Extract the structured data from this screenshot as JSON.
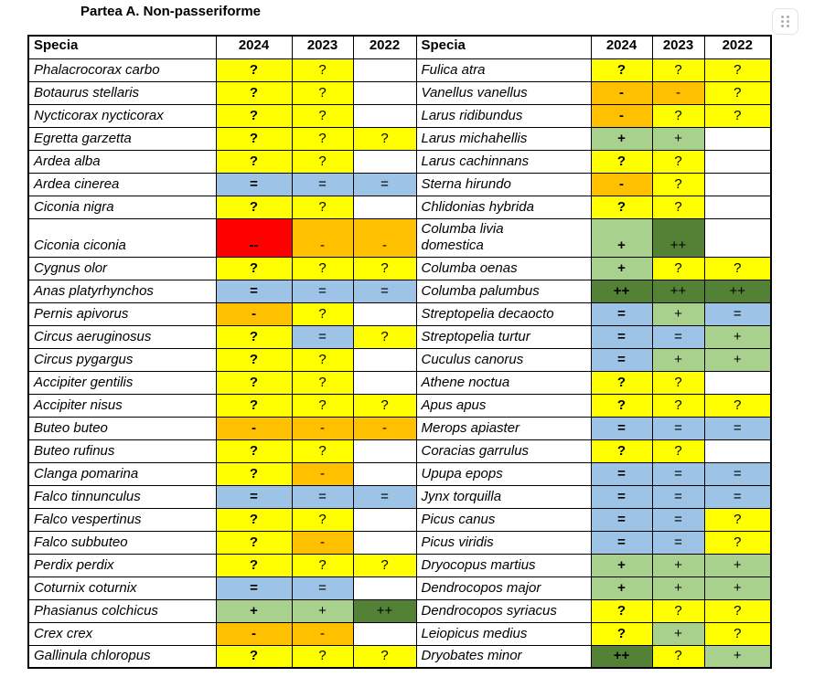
{
  "title": "Partea A. Non-passeriforme",
  "corner_widget": {
    "icon": "six-dot-grid-icon"
  },
  "table": {
    "header": {
      "specia": "Specia",
      "y2024": "2024",
      "y2023": "2023",
      "y2022": "2022"
    },
    "colors": {
      "Y": "#FFFF00",
      "O": "#FFC000",
      "B": "#9DC3E6",
      "G": "#A9D18E",
      "D": "#538135",
      "R": "#FF0000"
    },
    "rows": [
      {
        "tall": false,
        "left": {
          "species": "Phalacrocorax carbo",
          "cells": [
            [
              "?",
              "Y"
            ],
            [
              "?",
              "Y"
            ],
            null
          ]
        },
        "right": {
          "species": "Fulica atra",
          "cells": [
            [
              "?",
              "Y"
            ],
            [
              "?",
              "Y"
            ],
            [
              "?",
              "Y"
            ]
          ]
        }
      },
      {
        "tall": false,
        "left": {
          "species": "Botaurus stellaris",
          "cells": [
            [
              "?",
              "Y"
            ],
            [
              "?",
              "Y"
            ],
            null
          ]
        },
        "right": {
          "species": "Vanellus vanellus",
          "cells": [
            [
              "-",
              "O"
            ],
            [
              "-",
              "O"
            ],
            [
              "?",
              "Y"
            ]
          ]
        }
      },
      {
        "tall": false,
        "left": {
          "species": "Nycticorax nycticorax",
          "cells": [
            [
              "?",
              "Y"
            ],
            [
              "?",
              "Y"
            ],
            null
          ]
        },
        "right": {
          "species": "Larus ridibundus",
          "cells": [
            [
              "-",
              "O"
            ],
            [
              "?",
              "Y"
            ],
            [
              "?",
              "Y"
            ]
          ]
        }
      },
      {
        "tall": false,
        "left": {
          "species": "Egretta garzetta",
          "cells": [
            [
              "?",
              "Y"
            ],
            [
              "?",
              "Y"
            ],
            [
              "?",
              "Y"
            ]
          ]
        },
        "right": {
          "species": "Larus michahellis",
          "cells": [
            [
              "+",
              "G"
            ],
            [
              "+",
              "G"
            ],
            null
          ]
        }
      },
      {
        "tall": false,
        "left": {
          "species": "Ardea alba",
          "cells": [
            [
              "?",
              "Y"
            ],
            [
              "?",
              "Y"
            ],
            null
          ]
        },
        "right": {
          "species": "Larus cachinnans",
          "cells": [
            [
              "?",
              "Y"
            ],
            [
              "?",
              "Y"
            ],
            null
          ]
        }
      },
      {
        "tall": false,
        "left": {
          "species": "Ardea cinerea",
          "cells": [
            [
              "=",
              "B"
            ],
            [
              "=",
              "B"
            ],
            [
              "=",
              "B"
            ]
          ]
        },
        "right": {
          "species": "Sterna hirundo",
          "cells": [
            [
              "-",
              "O"
            ],
            [
              "?",
              "Y"
            ],
            null
          ]
        }
      },
      {
        "tall": false,
        "left": {
          "species": "Ciconia nigra",
          "cells": [
            [
              "?",
              "Y"
            ],
            [
              "?",
              "Y"
            ],
            null
          ]
        },
        "right": {
          "species": "Chlidonias hybrida",
          "cells": [
            [
              "?",
              "Y"
            ],
            [
              "?",
              "Y"
            ],
            null
          ]
        }
      },
      {
        "tall": true,
        "left": {
          "species": "Ciconia ciconia",
          "cells": [
            [
              "--",
              "R"
            ],
            [
              "-",
              "O"
            ],
            [
              "-",
              "O"
            ]
          ]
        },
        "right": {
          "species": "Columba livia\ndomestica",
          "cells": [
            [
              "+",
              "G"
            ],
            [
              "++",
              "D"
            ],
            null
          ]
        }
      },
      {
        "tall": false,
        "left": {
          "species": "Cygnus olor",
          "cells": [
            [
              "?",
              "Y"
            ],
            [
              "?",
              "Y"
            ],
            [
              "?",
              "Y"
            ]
          ]
        },
        "right": {
          "species": "Columba oenas",
          "cells": [
            [
              "+",
              "G"
            ],
            [
              "?",
              "Y"
            ],
            [
              "?",
              "Y"
            ]
          ]
        }
      },
      {
        "tall": false,
        "left": {
          "species": "Anas platyrhynchos",
          "cells": [
            [
              "=",
              "B"
            ],
            [
              "=",
              "B"
            ],
            [
              "=",
              "B"
            ]
          ]
        },
        "right": {
          "species": "Columba palumbus",
          "cells": [
            [
              "++",
              "D"
            ],
            [
              "++",
              "D"
            ],
            [
              "++",
              "D"
            ]
          ]
        }
      },
      {
        "tall": false,
        "left": {
          "species": "Pernis apivorus",
          "cells": [
            [
              "-",
              "O"
            ],
            [
              "?",
              "Y"
            ],
            null
          ]
        },
        "right": {
          "species": "Streptopelia decaocto",
          "cells": [
            [
              "=",
              "B"
            ],
            [
              "+",
              "G"
            ],
            [
              "=",
              "B"
            ]
          ]
        }
      },
      {
        "tall": false,
        "left": {
          "species": "Circus aeruginosus",
          "cells": [
            [
              "?",
              "Y"
            ],
            [
              "=",
              "B"
            ],
            [
              "?",
              "Y"
            ]
          ]
        },
        "right": {
          "species": "Streptopelia turtur",
          "cells": [
            [
              "=",
              "B"
            ],
            [
              "=",
              "B"
            ],
            [
              "+",
              "G"
            ]
          ]
        }
      },
      {
        "tall": false,
        "left": {
          "species": "Circus pygargus",
          "cells": [
            [
              "?",
              "Y"
            ],
            [
              "?",
              "Y"
            ],
            null
          ]
        },
        "right": {
          "species": "Cuculus canorus",
          "cells": [
            [
              "=",
              "B"
            ],
            [
              "+",
              "G"
            ],
            [
              "+",
              "G"
            ]
          ]
        }
      },
      {
        "tall": false,
        "left": {
          "species": "Accipiter gentilis",
          "cells": [
            [
              "?",
              "Y"
            ],
            [
              "?",
              "Y"
            ],
            null
          ]
        },
        "right": {
          "species": "Athene noctua",
          "cells": [
            [
              "?",
              "Y"
            ],
            [
              "?",
              "Y"
            ],
            null
          ]
        }
      },
      {
        "tall": false,
        "left": {
          "species": "Accipiter nisus",
          "cells": [
            [
              "?",
              "Y"
            ],
            [
              "?",
              "Y"
            ],
            [
              "?",
              "Y"
            ]
          ]
        },
        "right": {
          "species": "Apus apus",
          "cells": [
            [
              "?",
              "Y"
            ],
            [
              "?",
              "Y"
            ],
            [
              "?",
              "Y"
            ]
          ]
        }
      },
      {
        "tall": false,
        "left": {
          "species": "Buteo buteo",
          "cells": [
            [
              "-",
              "O"
            ],
            [
              "-",
              "O"
            ],
            [
              "-",
              "O"
            ]
          ]
        },
        "right": {
          "species": "Merops apiaster",
          "cells": [
            [
              "=",
              "B"
            ],
            [
              "=",
              "B"
            ],
            [
              "=",
              "B"
            ]
          ]
        }
      },
      {
        "tall": false,
        "left": {
          "species": "Buteo rufinus",
          "cells": [
            [
              "?",
              "Y"
            ],
            [
              "?",
              "Y"
            ],
            null
          ]
        },
        "right": {
          "species": "Coracias garrulus",
          "cells": [
            [
              "?",
              "Y"
            ],
            [
              "?",
              "Y"
            ],
            null
          ]
        }
      },
      {
        "tall": false,
        "left": {
          "species": "Clanga pomarina",
          "cells": [
            [
              "?",
              "Y"
            ],
            [
              "-",
              "O"
            ],
            null
          ]
        },
        "right": {
          "species": "Upupa epops",
          "cells": [
            [
              "=",
              "B"
            ],
            [
              "=",
              "B"
            ],
            [
              "=",
              "B"
            ]
          ]
        }
      },
      {
        "tall": false,
        "left": {
          "species": "Falco tinnunculus",
          "cells": [
            [
              "=",
              "B"
            ],
            [
              "=",
              "B"
            ],
            [
              "=",
              "B"
            ]
          ]
        },
        "right": {
          "species": "Jynx torquilla",
          "cells": [
            [
              "=",
              "B"
            ],
            [
              "=",
              "B"
            ],
            [
              "=",
              "B"
            ]
          ]
        }
      },
      {
        "tall": false,
        "left": {
          "species": "Falco vespertinus",
          "cells": [
            [
              "?",
              "Y"
            ],
            [
              "?",
              "Y"
            ],
            null
          ]
        },
        "right": {
          "species": "Picus canus",
          "cells": [
            [
              "=",
              "B"
            ],
            [
              "=",
              "B"
            ],
            [
              "?",
              "Y"
            ]
          ]
        }
      },
      {
        "tall": false,
        "left": {
          "species": "Falco subbuteo",
          "cells": [
            [
              "?",
              "Y"
            ],
            [
              "-",
              "O"
            ],
            null
          ]
        },
        "right": {
          "species": "Picus viridis",
          "cells": [
            [
              "=",
              "B"
            ],
            [
              "=",
              "B"
            ],
            [
              "?",
              "Y"
            ]
          ]
        }
      },
      {
        "tall": false,
        "left": {
          "species": "Perdix perdix",
          "cells": [
            [
              "?",
              "Y"
            ],
            [
              "?",
              "Y"
            ],
            [
              "?",
              "Y"
            ]
          ]
        },
        "right": {
          "species": "Dryocopus martius",
          "cells": [
            [
              "+",
              "G"
            ],
            [
              "+",
              "G"
            ],
            [
              "+",
              "G"
            ]
          ]
        }
      },
      {
        "tall": false,
        "left": {
          "species": "Coturnix coturnix",
          "cells": [
            [
              "=",
              "B"
            ],
            [
              "=",
              "B"
            ],
            null
          ]
        },
        "right": {
          "species": "Dendrocopos major",
          "cells": [
            [
              "+",
              "G"
            ],
            [
              "+",
              "G"
            ],
            [
              "+",
              "G"
            ]
          ]
        }
      },
      {
        "tall": false,
        "left": {
          "species": "Phasianus colchicus",
          "cells": [
            [
              "+",
              "G"
            ],
            [
              "+",
              "G"
            ],
            [
              "++",
              "D"
            ]
          ]
        },
        "right": {
          "species": "Dendrocopos syriacus",
          "cells": [
            [
              "?",
              "Y"
            ],
            [
              "?",
              "Y"
            ],
            [
              "?",
              "Y"
            ]
          ]
        }
      },
      {
        "tall": false,
        "left": {
          "species": "Crex crex",
          "cells": [
            [
              "-",
              "O"
            ],
            [
              "-",
              "O"
            ],
            null
          ]
        },
        "right": {
          "species": "Leiopicus medius",
          "cells": [
            [
              "?",
              "Y"
            ],
            [
              "+",
              "G"
            ],
            [
              "?",
              "Y"
            ]
          ]
        }
      },
      {
        "tall": false,
        "left": {
          "species": "Gallinula chloropus",
          "cells": [
            [
              "?",
              "Y"
            ],
            [
              "?",
              "Y"
            ],
            [
              "?",
              "Y"
            ]
          ]
        },
        "right": {
          "species": "Dryobates minor",
          "cells": [
            [
              "++",
              "D"
            ],
            [
              "?",
              "Y"
            ],
            [
              "+",
              "G"
            ]
          ]
        }
      }
    ]
  }
}
